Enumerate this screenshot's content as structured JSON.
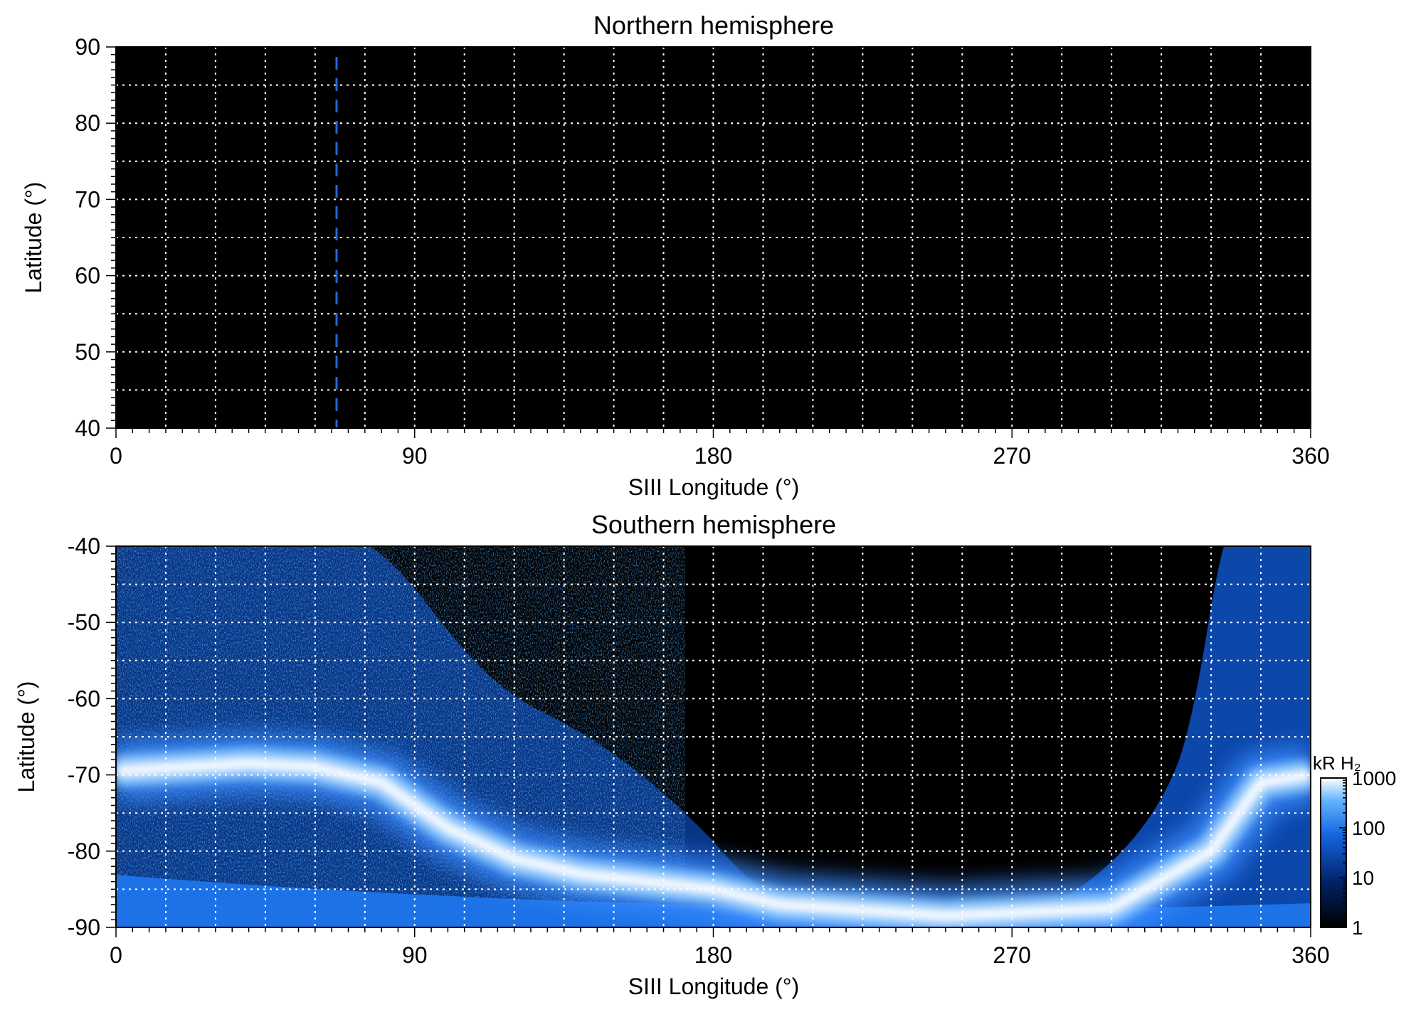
{
  "chart_data": [
    {
      "type": "heatmap",
      "title": "Northern hemisphere",
      "xlabel": "SIII Longitude (°)",
      "ylabel": "Latitude (°)",
      "xlim": [
        0,
        360
      ],
      "ylim": [
        40,
        90
      ],
      "x_ticks": [
        0,
        90,
        180,
        270,
        360
      ],
      "x_tick_labels": [
        "0",
        "90",
        "180",
        "270",
        "360"
      ],
      "y_ticks": [
        40,
        50,
        60,
        70,
        80,
        90
      ],
      "y_tick_labels": [
        "40",
        "50",
        "60",
        "70",
        "80",
        "90"
      ],
      "grid": true,
      "grid_x_step": 15,
      "grid_y_step": 5,
      "background_color": "#000000",
      "grid_color": "#ffffff",
      "emission": "none",
      "marker_line": {
        "x": 66,
        "style": "dashed",
        "color": "#2266dd"
      }
    },
    {
      "type": "heatmap",
      "title": "Southern hemisphere",
      "xlabel": "SIII Longitude (°)",
      "ylabel": "Latitude (°)",
      "xlim": [
        0,
        360
      ],
      "ylim": [
        -90,
        -40
      ],
      "x_ticks": [
        0,
        90,
        180,
        270,
        360
      ],
      "x_tick_labels": [
        "0",
        "90",
        "180",
        "270",
        "360"
      ],
      "y_ticks": [
        -90,
        -80,
        -70,
        -60,
        -50,
        -40
      ],
      "y_tick_labels": [
        "-90",
        "-80",
        "-70",
        "-60",
        "-50",
        "-40"
      ],
      "grid": true,
      "grid_x_step": 15,
      "grid_y_step": 5,
      "background_color": "#000000",
      "grid_color": "#ffffff",
      "emission_oval": [
        {
          "lon": 0,
          "lat": -69.5
        },
        {
          "lon": 20,
          "lat": -69
        },
        {
          "lon": 40,
          "lat": -68.5
        },
        {
          "lon": 60,
          "lat": -69
        },
        {
          "lon": 80,
          "lat": -71
        },
        {
          "lon": 100,
          "lat": -77
        },
        {
          "lon": 120,
          "lat": -81
        },
        {
          "lon": 140,
          "lat": -83
        },
        {
          "lon": 160,
          "lat": -84
        },
        {
          "lon": 180,
          "lat": -85
        },
        {
          "lon": 200,
          "lat": -87
        },
        {
          "lon": 250,
          "lat": -88.5
        },
        {
          "lon": 300,
          "lat": -87.5
        },
        {
          "lon": 330,
          "lat": -80
        },
        {
          "lon": 345,
          "lat": -71
        },
        {
          "lon": 360,
          "lat": -70
        }
      ],
      "colorbar": {
        "label": "kR H₂",
        "scale": "log",
        "range": [
          1,
          1000
        ],
        "ticks": [
          1,
          10,
          100,
          1000
        ],
        "tick_labels": [
          "1",
          "10",
          "100",
          "1000"
        ],
        "colors": [
          "#000000",
          "#002266",
          "#1565e0",
          "#62b4ff",
          "#ffffff"
        ]
      }
    }
  ]
}
